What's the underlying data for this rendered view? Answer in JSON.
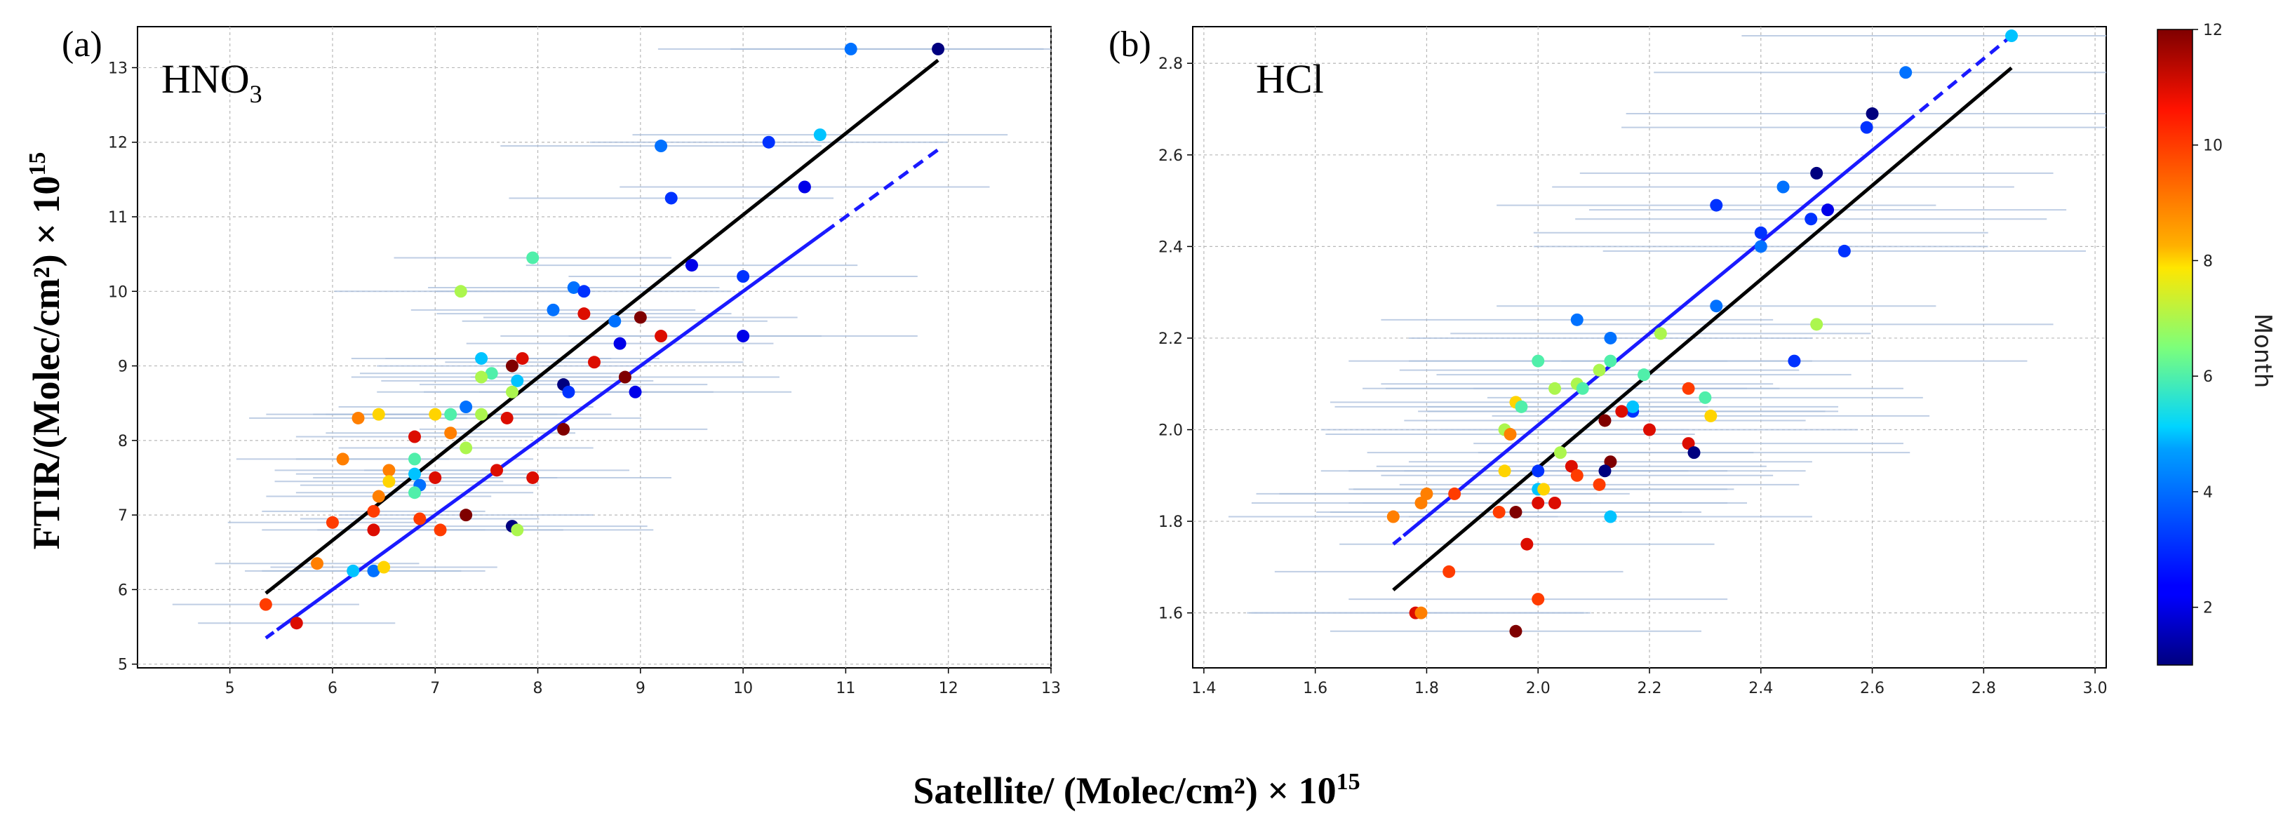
{
  "figure": {
    "xlabel": "Satellite/ (Molec/cm²) × 10",
    "xlabel_exp": "15",
    "ylabel": "FTIR/(Molec/cm²) × 10",
    "ylabel_exp": "15",
    "colorbar": {
      "label": "Month",
      "range": [
        1,
        12
      ],
      "ticks": [
        "2",
        "4",
        "6",
        "8",
        "10",
        "12"
      ]
    }
  },
  "chart_data": [
    {
      "type": "scatter",
      "panel": "(a)",
      "gas": "HNO",
      "gas_sub": "3",
      "xlim": [
        4.1,
        13.0
      ],
      "ylim": [
        4.95,
        13.55
      ],
      "xticks": [
        "5",
        "6",
        "7",
        "8",
        "9",
        "10",
        "11",
        "12",
        "13"
      ],
      "yticks": [
        "5",
        "6",
        "7",
        "8",
        "9",
        "10",
        "11",
        "12",
        "13"
      ],
      "black_line": {
        "x": [
          5.35,
          11.9
        ],
        "y": [
          5.95,
          13.1
        ]
      },
      "blue_line": {
        "x": [
          5.35,
          11.9
        ],
        "y": [
          5.35,
          11.9
        ],
        "solid_to": 10.8
      },
      "points": [
        {
          "x": 11.9,
          "y": 13.25,
          "m": 1
        },
        {
          "x": 11.05,
          "y": 13.25,
          "m": 4
        },
        {
          "x": 10.75,
          "y": 12.1,
          "m": 5
        },
        {
          "x": 10.25,
          "y": 12.0,
          "m": 3
        },
        {
          "x": 9.2,
          "y": 11.95,
          "m": 4
        },
        {
          "x": 10.6,
          "y": 11.4,
          "m": 2
        },
        {
          "x": 9.3,
          "y": 11.25,
          "m": 3
        },
        {
          "x": 9.5,
          "y": 10.35,
          "m": 2
        },
        {
          "x": 10.0,
          "y": 10.2,
          "m": 3
        },
        {
          "x": 10.0,
          "y": 9.4,
          "m": 2
        },
        {
          "x": 7.95,
          "y": 10.45,
          "m": 6
        },
        {
          "x": 7.25,
          "y": 10.0,
          "m": 7
        },
        {
          "x": 8.35,
          "y": 10.05,
          "m": 4
        },
        {
          "x": 8.45,
          "y": 10.0,
          "m": 3
        },
        {
          "x": 8.15,
          "y": 9.75,
          "m": 4
        },
        {
          "x": 8.45,
          "y": 9.7,
          "m": 11
        },
        {
          "x": 8.75,
          "y": 9.6,
          "m": 4
        },
        {
          "x": 9.0,
          "y": 9.65,
          "m": 12
        },
        {
          "x": 8.8,
          "y": 9.3,
          "m": 2
        },
        {
          "x": 9.2,
          "y": 9.4,
          "m": 11
        },
        {
          "x": 7.45,
          "y": 9.1,
          "m": 5
        },
        {
          "x": 7.85,
          "y": 9.1,
          "m": 11
        },
        {
          "x": 7.75,
          "y": 9.0,
          "m": 12
        },
        {
          "x": 7.55,
          "y": 8.9,
          "m": 6
        },
        {
          "x": 7.45,
          "y": 8.85,
          "m": 7
        },
        {
          "x": 7.8,
          "y": 8.8,
          "m": 5
        },
        {
          "x": 7.75,
          "y": 8.65,
          "m": 7
        },
        {
          "x": 8.55,
          "y": 9.05,
          "m": 11
        },
        {
          "x": 8.25,
          "y": 8.75,
          "m": 1
        },
        {
          "x": 8.3,
          "y": 8.65,
          "m": 3
        },
        {
          "x": 8.85,
          "y": 8.85,
          "m": 12
        },
        {
          "x": 8.95,
          "y": 8.65,
          "m": 2
        },
        {
          "x": 7.3,
          "y": 8.45,
          "m": 4
        },
        {
          "x": 7.15,
          "y": 8.35,
          "m": 6
        },
        {
          "x": 7.45,
          "y": 8.35,
          "m": 7
        },
        {
          "x": 7.0,
          "y": 8.35,
          "m": 8
        },
        {
          "x": 6.45,
          "y": 8.35,
          "m": 8
        },
        {
          "x": 6.25,
          "y": 8.3,
          "m": 9
        },
        {
          "x": 7.15,
          "y": 8.1,
          "m": 9
        },
        {
          "x": 6.8,
          "y": 8.05,
          "m": 11
        },
        {
          "x": 7.7,
          "y": 8.3,
          "m": 11
        },
        {
          "x": 8.25,
          "y": 8.15,
          "m": 12
        },
        {
          "x": 7.3,
          "y": 7.9,
          "m": 7
        },
        {
          "x": 6.1,
          "y": 7.75,
          "m": 9
        },
        {
          "x": 6.8,
          "y": 7.75,
          "m": 6
        },
        {
          "x": 6.55,
          "y": 7.6,
          "m": 9
        },
        {
          "x": 6.55,
          "y": 7.45,
          "m": 8
        },
        {
          "x": 6.8,
          "y": 7.55,
          "m": 5
        },
        {
          "x": 7.0,
          "y": 7.5,
          "m": 11
        },
        {
          "x": 7.6,
          "y": 7.6,
          "m": 11
        },
        {
          "x": 7.95,
          "y": 7.5,
          "m": 11
        },
        {
          "x": 6.85,
          "y": 7.4,
          "m": 4
        },
        {
          "x": 6.8,
          "y": 7.3,
          "m": 6
        },
        {
          "x": 6.45,
          "y": 7.25,
          "m": 9
        },
        {
          "x": 6.4,
          "y": 7.05,
          "m": 10
        },
        {
          "x": 6.85,
          "y": 6.95,
          "m": 10
        },
        {
          "x": 7.3,
          "y": 7.0,
          "m": 12
        },
        {
          "x": 6.0,
          "y": 6.9,
          "m": 10
        },
        {
          "x": 6.4,
          "y": 6.8,
          "m": 11
        },
        {
          "x": 7.05,
          "y": 6.8,
          "m": 10
        },
        {
          "x": 7.75,
          "y": 6.85,
          "m": 1
        },
        {
          "x": 7.8,
          "y": 6.8,
          "m": 7
        },
        {
          "x": 5.85,
          "y": 6.35,
          "m": 9
        },
        {
          "x": 6.2,
          "y": 6.25,
          "m": 5
        },
        {
          "x": 6.4,
          "y": 6.25,
          "m": 4
        },
        {
          "x": 6.5,
          "y": 6.3,
          "m": 8
        },
        {
          "x": 5.35,
          "y": 5.8,
          "m": 10
        },
        {
          "x": 5.65,
          "y": 5.55,
          "m": 11
        }
      ]
    },
    {
      "type": "scatter",
      "panel": "(b)",
      "gas": "HCl",
      "gas_sub": "",
      "xlim": [
        1.38,
        3.02
      ],
      "ylim": [
        1.48,
        2.88
      ],
      "xticks": [
        "1.4",
        "1.6",
        "1.8",
        "2.0",
        "2.2",
        "2.4",
        "2.6",
        "2.8",
        "3.0"
      ],
      "yticks": [
        "1.6",
        "1.8",
        "2.0",
        "2.2",
        "2.4",
        "2.6",
        "2.8"
      ],
      "black_line": {
        "x": [
          1.74,
          2.85
        ],
        "y": [
          1.65,
          2.79
        ]
      },
      "blue_line": {
        "x": [
          1.74,
          2.85
        ],
        "y": [
          1.75,
          2.86
        ],
        "solid_to": 2.66
      },
      "points": [
        {
          "x": 2.85,
          "y": 2.86,
          "m": 5
        },
        {
          "x": 2.66,
          "y": 2.78,
          "m": 4
        },
        {
          "x": 2.6,
          "y": 2.69,
          "m": 1
        },
        {
          "x": 2.59,
          "y": 2.66,
          "m": 3
        },
        {
          "x": 2.5,
          "y": 2.56,
          "m": 1
        },
        {
          "x": 2.44,
          "y": 2.53,
          "m": 4
        },
        {
          "x": 2.52,
          "y": 2.48,
          "m": 2
        },
        {
          "x": 2.32,
          "y": 2.49,
          "m": 3
        },
        {
          "x": 2.49,
          "y": 2.46,
          "m": 3
        },
        {
          "x": 2.4,
          "y": 2.43,
          "m": 3
        },
        {
          "x": 2.4,
          "y": 2.4,
          "m": 4
        },
        {
          "x": 2.55,
          "y": 2.39,
          "m": 3
        },
        {
          "x": 2.32,
          "y": 2.27,
          "m": 4
        },
        {
          "x": 2.07,
          "y": 2.24,
          "m": 4
        },
        {
          "x": 2.5,
          "y": 2.23,
          "m": 7
        },
        {
          "x": 2.22,
          "y": 2.21,
          "m": 7
        },
        {
          "x": 2.13,
          "y": 2.2,
          "m": 4
        },
        {
          "x": 2.0,
          "y": 2.15,
          "m": 6
        },
        {
          "x": 2.13,
          "y": 2.15,
          "m": 6
        },
        {
          "x": 2.46,
          "y": 2.15,
          "m": 3
        },
        {
          "x": 2.11,
          "y": 2.13,
          "m": 7
        },
        {
          "x": 2.19,
          "y": 2.12,
          "m": 6
        },
        {
          "x": 2.07,
          "y": 2.1,
          "m": 7
        },
        {
          "x": 2.08,
          "y": 2.09,
          "m": 6
        },
        {
          "x": 2.03,
          "y": 2.09,
          "m": 7
        },
        {
          "x": 2.27,
          "y": 2.09,
          "m": 10
        },
        {
          "x": 2.3,
          "y": 2.07,
          "m": 6
        },
        {
          "x": 1.96,
          "y": 2.06,
          "m": 8
        },
        {
          "x": 1.97,
          "y": 2.05,
          "m": 6
        },
        {
          "x": 2.17,
          "y": 2.04,
          "m": 3
        },
        {
          "x": 2.17,
          "y": 2.05,
          "m": 5
        },
        {
          "x": 2.15,
          "y": 2.04,
          "m": 11
        },
        {
          "x": 2.31,
          "y": 2.03,
          "m": 8
        },
        {
          "x": 2.12,
          "y": 2.02,
          "m": 12
        },
        {
          "x": 1.94,
          "y": 2.0,
          "m": 7
        },
        {
          "x": 1.95,
          "y": 1.99,
          "m": 9
        },
        {
          "x": 2.2,
          "y": 2.0,
          "m": 11
        },
        {
          "x": 2.04,
          "y": 1.95,
          "m": 7
        },
        {
          "x": 2.27,
          "y": 1.97,
          "m": 11
        },
        {
          "x": 2.28,
          "y": 1.95,
          "m": 1
        },
        {
          "x": 2.06,
          "y": 1.92,
          "m": 11
        },
        {
          "x": 2.13,
          "y": 1.93,
          "m": 12
        },
        {
          "x": 1.94,
          "y": 1.91,
          "m": 8
        },
        {
          "x": 2.0,
          "y": 1.91,
          "m": 3
        },
        {
          "x": 2.12,
          "y": 1.91,
          "m": 1
        },
        {
          "x": 2.07,
          "y": 1.9,
          "m": 10
        },
        {
          "x": 2.11,
          "y": 1.88,
          "m": 10
        },
        {
          "x": 2.0,
          "y": 1.87,
          "m": 5
        },
        {
          "x": 1.8,
          "y": 1.86,
          "m": 9
        },
        {
          "x": 1.85,
          "y": 1.86,
          "m": 10
        },
        {
          "x": 2.01,
          "y": 1.87,
          "m": 8
        },
        {
          "x": 1.79,
          "y": 1.84,
          "m": 9
        },
        {
          "x": 1.93,
          "y": 1.82,
          "m": 10
        },
        {
          "x": 1.96,
          "y": 1.82,
          "m": 12
        },
        {
          "x": 2.0,
          "y": 1.84,
          "m": 11
        },
        {
          "x": 2.03,
          "y": 1.84,
          "m": 11
        },
        {
          "x": 1.74,
          "y": 1.81,
          "m": 9
        },
        {
          "x": 2.13,
          "y": 1.81,
          "m": 5
        },
        {
          "x": 1.98,
          "y": 1.75,
          "m": 11
        },
        {
          "x": 1.84,
          "y": 1.69,
          "m": 10
        },
        {
          "x": 2.0,
          "y": 1.63,
          "m": 10
        },
        {
          "x": 1.78,
          "y": 1.6,
          "m": 11
        },
        {
          "x": 1.79,
          "y": 1.6,
          "m": 9
        },
        {
          "x": 1.96,
          "y": 1.56,
          "m": 12
        }
      ]
    }
  ]
}
